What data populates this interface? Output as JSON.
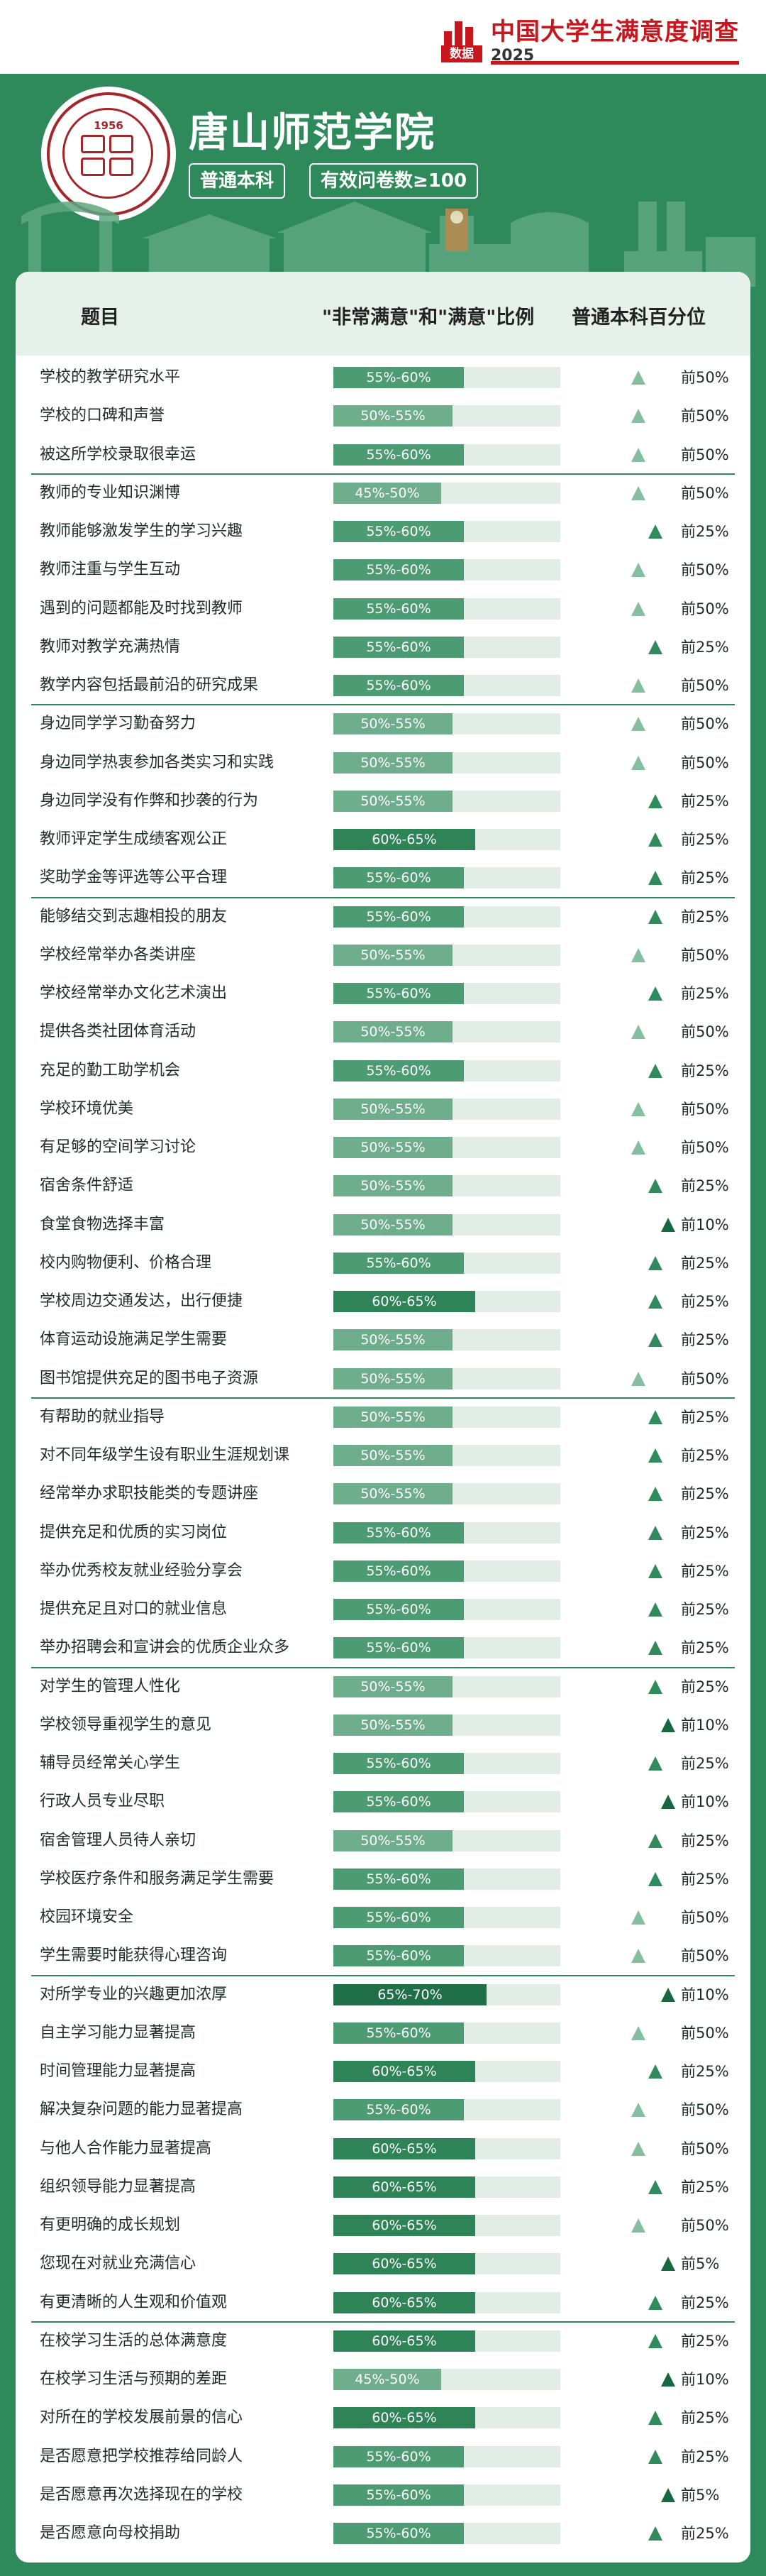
{
  "brand": {
    "title": "中国大学生满意度调查",
    "year": "2025",
    "logo_text": "数据"
  },
  "school": {
    "name": "唐山师范学院",
    "seal_year": "1956",
    "tag_level": "普通本科",
    "tag_sample": "有效问卷数≥100"
  },
  "table": {
    "col_question": "题目",
    "col_ratio": "\"非常满意\"和\"满意\"比例",
    "col_percentile": "普通本科百分位"
  },
  "colors": {
    "r45": "#6fae8c",
    "r50": "#6fae8c",
    "r55": "#4d9b72",
    "r60": "#2e8357",
    "r65": "#1f7048",
    "tri25": "#2f8a5c",
    "tri50": "#86bea0",
    "tri10": "#17683f"
  },
  "rows": [
    {
      "q": "学校的教学研究水平",
      "r": "55%-60%",
      "v": 57.5,
      "p": "前50%",
      "g": 0
    },
    {
      "q": "学校的口碑和声誉",
      "r": "50%-55%",
      "v": 52.5,
      "p": "前50%",
      "g": 0
    },
    {
      "q": "被这所学校录取很幸运",
      "r": "55%-60%",
      "v": 57.5,
      "p": "前50%",
      "g": 0
    },
    {
      "q": "教师的专业知识渊博",
      "r": "45%-50%",
      "v": 47.5,
      "p": "前50%",
      "g": 1
    },
    {
      "q": "教师能够激发学生的学习兴趣",
      "r": "55%-60%",
      "v": 57.5,
      "p": "前25%",
      "g": 1
    },
    {
      "q": "教师注重与学生互动",
      "r": "55%-60%",
      "v": 57.5,
      "p": "前50%",
      "g": 1
    },
    {
      "q": "遇到的问题都能及时找到教师",
      "r": "55%-60%",
      "v": 57.5,
      "p": "前50%",
      "g": 1
    },
    {
      "q": "教师对教学充满热情",
      "r": "55%-60%",
      "v": 57.5,
      "p": "前25%",
      "g": 1
    },
    {
      "q": "教学内容包括最前沿的研究成果",
      "r": "55%-60%",
      "v": 57.5,
      "p": "前50%",
      "g": 1
    },
    {
      "q": "身边同学学习勤奋努力",
      "r": "50%-55%",
      "v": 52.5,
      "p": "前50%",
      "g": 2
    },
    {
      "q": "身边同学热衷参加各类实习和实践",
      "r": "50%-55%",
      "v": 52.5,
      "p": "前50%",
      "g": 2
    },
    {
      "q": "身边同学没有作弊和抄袭的行为",
      "r": "50%-55%",
      "v": 52.5,
      "p": "前25%",
      "g": 2
    },
    {
      "q": "教师评定学生成绩客观公正",
      "r": "60%-65%",
      "v": 62.5,
      "p": "前25%",
      "g": 2
    },
    {
      "q": "奖助学金等评选等公平合理",
      "r": "55%-60%",
      "v": 57.5,
      "p": "前25%",
      "g": 2
    },
    {
      "q": "能够结交到志趣相投的朋友",
      "r": "55%-60%",
      "v": 57.5,
      "p": "前25%",
      "g": 3
    },
    {
      "q": "学校经常举办各类讲座",
      "r": "50%-55%",
      "v": 52.5,
      "p": "前50%",
      "g": 3
    },
    {
      "q": "学校经常举办文化艺术演出",
      "r": "55%-60%",
      "v": 57.5,
      "p": "前25%",
      "g": 3
    },
    {
      "q": "提供各类社团体育活动",
      "r": "50%-55%",
      "v": 52.5,
      "p": "前50%",
      "g": 3
    },
    {
      "q": "充足的勤工助学机会",
      "r": "55%-60%",
      "v": 57.5,
      "p": "前25%",
      "g": 3
    },
    {
      "q": "学校环境优美",
      "r": "50%-55%",
      "v": 52.5,
      "p": "前50%",
      "g": 3
    },
    {
      "q": "有足够的空间学习讨论",
      "r": "50%-55%",
      "v": 52.5,
      "p": "前50%",
      "g": 3
    },
    {
      "q": "宿舍条件舒适",
      "r": "50%-55%",
      "v": 52.5,
      "p": "前25%",
      "g": 3
    },
    {
      "q": "食堂食物选择丰富",
      "r": "50%-55%",
      "v": 52.5,
      "p": "前10%",
      "g": 3
    },
    {
      "q": "校内购物便利、价格合理",
      "r": "55%-60%",
      "v": 57.5,
      "p": "前25%",
      "g": 3
    },
    {
      "q": "学校周边交通发达，出行便捷",
      "r": "60%-65%",
      "v": 62.5,
      "p": "前25%",
      "g": 3
    },
    {
      "q": "体育运动设施满足学生需要",
      "r": "50%-55%",
      "v": 52.5,
      "p": "前25%",
      "g": 3
    },
    {
      "q": "图书馆提供充足的图书电子资源",
      "r": "50%-55%",
      "v": 52.5,
      "p": "前50%",
      "g": 3
    },
    {
      "q": "有帮助的就业指导",
      "r": "50%-55%",
      "v": 52.5,
      "p": "前25%",
      "g": 4
    },
    {
      "q": "对不同年级学生设有职业生涯规划课",
      "r": "50%-55%",
      "v": 52.5,
      "p": "前25%",
      "g": 4
    },
    {
      "q": "经常举办求职技能类的专题讲座",
      "r": "50%-55%",
      "v": 52.5,
      "p": "前25%",
      "g": 4
    },
    {
      "q": "提供充足和优质的实习岗位",
      "r": "55%-60%",
      "v": 57.5,
      "p": "前25%",
      "g": 4
    },
    {
      "q": "举办优秀校友就业经验分享会",
      "r": "55%-60%",
      "v": 57.5,
      "p": "前25%",
      "g": 4
    },
    {
      "q": "提供充足且对口的就业信息",
      "r": "55%-60%",
      "v": 57.5,
      "p": "前25%",
      "g": 4
    },
    {
      "q": "举办招聘会和宣讲会的优质企业众多",
      "r": "55%-60%",
      "v": 57.5,
      "p": "前25%",
      "g": 4
    },
    {
      "q": "对学生的管理人性化",
      "r": "50%-55%",
      "v": 52.5,
      "p": "前25%",
      "g": 5
    },
    {
      "q": "学校领导重视学生的意见",
      "r": "50%-55%",
      "v": 52.5,
      "p": "前10%",
      "g": 5
    },
    {
      "q": "辅导员经常关心学生",
      "r": "55%-60%",
      "v": 57.5,
      "p": "前25%",
      "g": 5
    },
    {
      "q": "行政人员专业尽职",
      "r": "55%-60%",
      "v": 57.5,
      "p": "前10%",
      "g": 5
    },
    {
      "q": "宿舍管理人员待人亲切",
      "r": "50%-55%",
      "v": 52.5,
      "p": "前25%",
      "g": 5
    },
    {
      "q": "学校医疗条件和服务满足学生需要",
      "r": "55%-60%",
      "v": 57.5,
      "p": "前25%",
      "g": 5
    },
    {
      "q": "校园环境安全",
      "r": "55%-60%",
      "v": 57.5,
      "p": "前50%",
      "g": 5
    },
    {
      "q": "学生需要时能获得心理咨询",
      "r": "55%-60%",
      "v": 57.5,
      "p": "前50%",
      "g": 5
    },
    {
      "q": "对所学专业的兴趣更加浓厚",
      "r": "65%-70%",
      "v": 67.5,
      "p": "前10%",
      "g": 6
    },
    {
      "q": "自主学习能力显著提高",
      "r": "55%-60%",
      "v": 57.5,
      "p": "前50%",
      "g": 6
    },
    {
      "q": "时间管理能力显著提高",
      "r": "60%-65%",
      "v": 62.5,
      "p": "前25%",
      "g": 6
    },
    {
      "q": "解决复杂问题的能力显著提高",
      "r": "55%-60%",
      "v": 57.5,
      "p": "前50%",
      "g": 6
    },
    {
      "q": "与他人合作能力显著提高",
      "r": "60%-65%",
      "v": 62.5,
      "p": "前50%",
      "g": 6
    },
    {
      "q": "组织领导能力显著提高",
      "r": "60%-65%",
      "v": 62.5,
      "p": "前25%",
      "g": 6
    },
    {
      "q": "有更明确的成长规划",
      "r": "60%-65%",
      "v": 62.5,
      "p": "前50%",
      "g": 6
    },
    {
      "q": "您现在对就业充满信心",
      "r": "60%-65%",
      "v": 62.5,
      "p": "前5%",
      "g": 6
    },
    {
      "q": "有更清晰的人生观和价值观",
      "r": "60%-65%",
      "v": 62.5,
      "p": "前25%",
      "g": 6
    },
    {
      "q": "在校学习生活的总体满意度",
      "r": "60%-65%",
      "v": 62.5,
      "p": "前25%",
      "g": 7
    },
    {
      "q": "在校学习生活与预期的差距",
      "r": "45%-50%",
      "v": 47.5,
      "p": "前10%",
      "g": 7
    },
    {
      "q": "对所在的学校发展前景的信心",
      "r": "60%-65%",
      "v": 62.5,
      "p": "前25%",
      "g": 7
    },
    {
      "q": "是否愿意把学校推荐给同龄人",
      "r": "55%-60%",
      "v": 57.5,
      "p": "前25%",
      "g": 7
    },
    {
      "q": "是否愿意再次选择现在的学校",
      "r": "55%-60%",
      "v": 57.5,
      "p": "前5%",
      "g": 7
    },
    {
      "q": "是否愿意向母校捐助",
      "r": "55%-60%",
      "v": 57.5,
      "p": "前25%",
      "g": 7
    }
  ]
}
